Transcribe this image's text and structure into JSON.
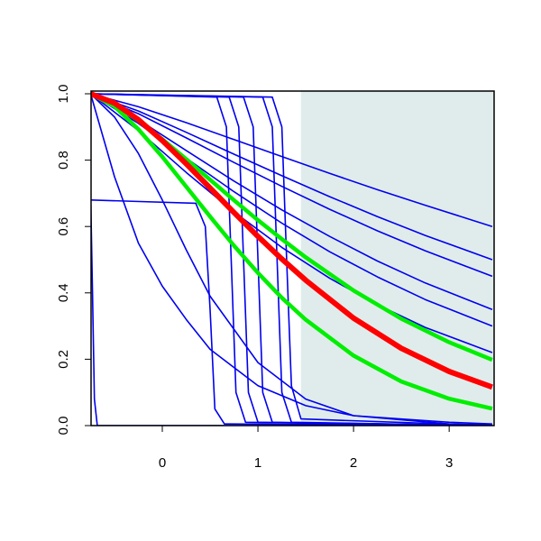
{
  "chart_data": {
    "type": "line",
    "xlim": [
      -0.745,
      3.47
    ],
    "ylim": [
      0,
      1
    ],
    "xticks": [
      0,
      1,
      2,
      3
    ],
    "yticks": [
      {
        "value": 0,
        "label": "0.0"
      },
      0.2,
      0.4,
      0.6,
      0.8,
      {
        "value": 1,
        "label": "1.0"
      }
    ],
    "shaded_region": {
      "x": [
        1.45,
        3.47
      ],
      "color": "#e0ecec"
    },
    "series": [
      {
        "color": "#0000ee",
        "width": 1.6,
        "x": [
          -0.75,
          -0.25,
          0.25,
          0.75,
          1.25,
          1.75,
          2.25,
          2.75,
          3.45
        ],
        "values": [
          1,
          0.961,
          0.913,
          0.862,
          0.811,
          0.76,
          0.711,
          0.664,
          0.6
        ]
      },
      {
        "color": "#0000ee",
        "width": 1.6,
        "x": [
          -0.75,
          -0.25,
          0.25,
          0.75,
          1.25,
          1.75,
          2.25,
          2.75,
          3.45
        ],
        "values": [
          1,
          0.948,
          0.884,
          0.818,
          0.753,
          0.69,
          0.63,
          0.573,
          0.5
        ]
      },
      {
        "color": "#0000ee",
        "width": 1.6,
        "x": [
          -0.75,
          -0.25,
          0.25,
          0.75,
          1.25,
          1.75,
          2.25,
          2.75,
          3.45
        ],
        "values": [
          1,
          0.94,
          0.867,
          0.793,
          0.721,
          0.652,
          0.587,
          0.527,
          0.45
        ]
      },
      {
        "color": "#0000ee",
        "width": 1.6,
        "x": [
          -0.75,
          -0.25,
          0.25,
          0.75,
          1.25,
          1.75,
          2.25,
          2.75,
          3.45
        ],
        "values": [
          1,
          0.922,
          0.829,
          0.737,
          0.65,
          0.57,
          0.496,
          0.43,
          0.35
        ]
      },
      {
        "color": "#0000ee",
        "width": 1.6,
        "x": [
          -0.75,
          -0.25,
          0.25,
          0.75,
          1.25,
          1.75,
          2.25,
          2.75,
          3.45
        ],
        "values": [
          1,
          0.911,
          0.806,
          0.705,
          0.61,
          0.524,
          0.448,
          0.38,
          0.3
        ]
      },
      {
        "color": "#0000ee",
        "width": 1.6,
        "x": [
          -0.75,
          -0.25,
          0.25,
          0.75,
          1.25,
          1.75,
          2.25,
          2.75,
          3.45
        ],
        "values": [
          1,
          0.889,
          0.763,
          0.644,
          0.537,
          0.444,
          0.364,
          0.296,
          0.22
        ]
      },
      {
        "color": "#0000ee",
        "width": 1.6,
        "x": [
          -0.75,
          -0.5,
          -0.25,
          0,
          0.25,
          0.5,
          1,
          1.5,
          2,
          3,
          3.45
        ],
        "values": [
          1,
          0.75,
          0.55,
          0.42,
          0.32,
          0.23,
          0.12,
          0.06,
          0.03,
          0.01,
          0.005
        ]
      },
      {
        "color": "#0000ee",
        "width": 1.6,
        "x": [
          -0.75,
          -0.5,
          -0.25,
          0,
          0.25,
          0.5,
          1,
          1.5,
          2,
          3,
          3.45
        ],
        "values": [
          1,
          0.93,
          0.82,
          0.68,
          0.53,
          0.39,
          0.19,
          0.08,
          0.03,
          0.005,
          0.002
        ]
      },
      {
        "color": "#0000ee",
        "width": 1.6,
        "x": [
          -0.75,
          -0.73,
          -0.71,
          -0.68,
          3.45
        ],
        "values": [
          0.7,
          0.4,
          0.08,
          0,
          0
        ]
      },
      {
        "color": "#0000ee",
        "width": 1.6,
        "x": [
          -0.75,
          0.35,
          0.45,
          0.5,
          0.55,
          0.65,
          3.45
        ],
        "values": [
          0.68,
          0.67,
          0.6,
          0.35,
          0.05,
          0.005,
          0
        ]
      },
      {
        "color": "#0000ee",
        "width": 1.6,
        "x": [
          -0.75,
          0.57,
          0.67,
          0.72,
          0.77,
          0.87,
          3.45
        ],
        "values": [
          1,
          0.99,
          0.9,
          0.5,
          0.1,
          0.01,
          0
        ]
      },
      {
        "color": "#0000ee",
        "width": 1.6,
        "x": [
          -0.75,
          0.7,
          0.8,
          0.85,
          0.9,
          1.0,
          3.45
        ],
        "values": [
          1,
          0.99,
          0.9,
          0.5,
          0.1,
          0.01,
          0
        ]
      },
      {
        "color": "#0000ee",
        "width": 1.6,
        "x": [
          -0.75,
          0.85,
          0.95,
          1.0,
          1.05,
          1.15,
          3.45
        ],
        "values": [
          1,
          0.99,
          0.9,
          0.5,
          0.1,
          0.01,
          0
        ]
      },
      {
        "color": "#0000ee",
        "width": 1.6,
        "x": [
          -0.75,
          1.05,
          1.15,
          1.2,
          1.25,
          1.35,
          3.45
        ],
        "values": [
          1,
          0.99,
          0.9,
          0.5,
          0.1,
          0.01,
          0
        ]
      },
      {
        "color": "#0000ee",
        "width": 1.6,
        "x": [
          -0.75,
          1.15,
          1.25,
          1.3,
          1.35,
          1.45,
          3.45
        ],
        "values": [
          1,
          0.99,
          0.9,
          0.5,
          0.12,
          0.02,
          0
        ]
      },
      {
        "color": "#00ee00",
        "width": 4.5,
        "x": [
          -0.75,
          -0.5,
          -0.25,
          0,
          0.25,
          0.5,
          0.75,
          1,
          1.25,
          1.5,
          2,
          2.5,
          3,
          3.45
        ],
        "values": [
          1,
          0.969,
          0.919,
          0.863,
          0.803,
          0.741,
          0.679,
          0.619,
          0.562,
          0.507,
          0.407,
          0.322,
          0.251,
          0.198
        ]
      },
      {
        "color": "#00ee00",
        "width": 4.5,
        "x": [
          -0.75,
          -0.5,
          -0.25,
          0,
          0.25,
          0.5,
          0.75,
          1,
          1.25,
          1.5,
          2,
          2.5,
          3,
          3.45
        ],
        "values": [
          1,
          0.962,
          0.893,
          0.81,
          0.72,
          0.63,
          0.542,
          0.46,
          0.385,
          0.319,
          0.211,
          0.133,
          0.081,
          0.051
        ]
      },
      {
        "color": "#ff0000",
        "width": 6,
        "x": [
          -0.75,
          -0.5,
          -0.25,
          0,
          0.25,
          0.5,
          0.75,
          1,
          1.25,
          1.5,
          2,
          2.5,
          3,
          3.45
        ],
        "values": [
          1,
          0.972,
          0.922,
          0.859,
          0.789,
          0.716,
          0.642,
          0.57,
          0.502,
          0.438,
          0.324,
          0.233,
          0.163,
          0.116
        ]
      }
    ]
  }
}
